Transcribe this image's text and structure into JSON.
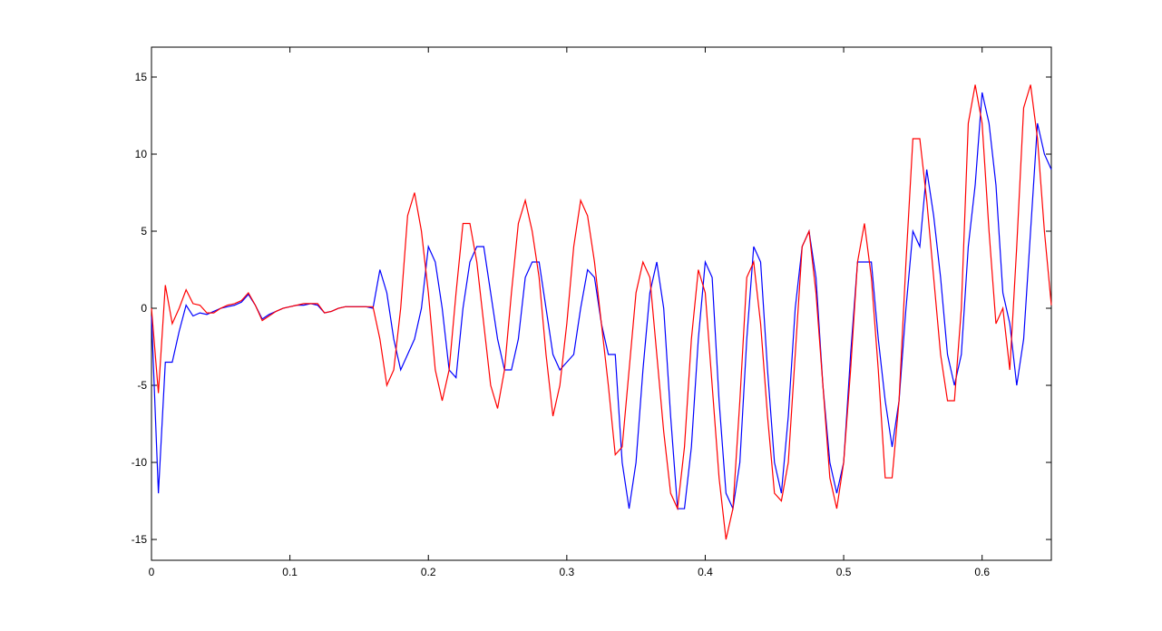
{
  "chart_data": {
    "type": "line",
    "x": [
      0,
      0.005,
      0.01,
      0.015,
      0.02,
      0.025,
      0.03,
      0.035,
      0.04,
      0.045,
      0.05,
      0.055,
      0.06,
      0.065,
      0.07,
      0.075,
      0.08,
      0.085,
      0.09,
      0.095,
      0.1,
      0.105,
      0.11,
      0.115,
      0.12,
      0.125,
      0.13,
      0.135,
      0.14,
      0.145,
      0.15,
      0.155,
      0.16,
      0.165,
      0.17,
      0.175,
      0.18,
      0.185,
      0.19,
      0.195,
      0.2,
      0.205,
      0.21,
      0.215,
      0.22,
      0.225,
      0.23,
      0.235,
      0.24,
      0.245,
      0.25,
      0.255,
      0.26,
      0.265,
      0.27,
      0.275,
      0.28,
      0.285,
      0.29,
      0.295,
      0.3,
      0.305,
      0.31,
      0.315,
      0.32,
      0.325,
      0.33,
      0.335,
      0.34,
      0.345,
      0.35,
      0.355,
      0.36,
      0.365,
      0.37,
      0.375,
      0.38,
      0.385,
      0.39,
      0.395,
      0.4,
      0.405,
      0.41,
      0.415,
      0.42,
      0.425,
      0.43,
      0.435,
      0.44,
      0.445,
      0.45,
      0.455,
      0.46,
      0.465,
      0.47,
      0.475,
      0.48,
      0.485,
      0.49,
      0.495,
      0.5,
      0.505,
      0.51,
      0.515,
      0.52,
      0.525,
      0.53,
      0.535,
      0.54,
      0.545,
      0.55,
      0.555,
      0.56,
      0.565,
      0.57,
      0.575,
      0.58,
      0.585,
      0.59,
      0.595,
      0.6,
      0.605,
      0.61,
      0.615,
      0.62,
      0.625,
      0.63,
      0.635,
      0.64,
      0.645,
      0.65
    ],
    "series": [
      {
        "color": "#0000ff",
        "values": [
          -0.5,
          -12,
          -3.5,
          -3.5,
          -1.5,
          0.2,
          -0.5,
          -0.3,
          -0.4,
          -0.2,
          0,
          0.1,
          0.2,
          0.4,
          0.9,
          0.2,
          -0.7,
          -0.4,
          -0.2,
          0,
          0.1,
          0.2,
          0.2,
          0.3,
          0.2,
          -0.3,
          -0.2,
          0,
          0.1,
          0.1,
          0.1,
          0.1,
          0,
          2.5,
          1,
          -2,
          -4,
          -3,
          -2,
          0,
          4,
          3,
          0,
          -4,
          -4.5,
          0,
          3,
          4,
          4,
          1,
          -2,
          -4,
          -4,
          -2,
          2,
          3,
          3,
          0,
          -3,
          -4,
          -3.5,
          -3,
          0,
          2.5,
          2,
          -1,
          -3,
          -3,
          -10,
          -13,
          -10,
          -4,
          1,
          3,
          0,
          -7,
          -13,
          -13,
          -9,
          -2,
          3,
          2,
          -6,
          -12,
          -13,
          -10,
          -2,
          4,
          3,
          -4,
          -10,
          -12,
          -7,
          0,
          4,
          5,
          2,
          -5,
          -10,
          -12,
          -10,
          -3,
          3,
          3,
          3,
          -2,
          -6,
          -9,
          -6,
          0,
          5,
          4,
          9,
          6,
          2,
          -3,
          -5,
          -3,
          4,
          8,
          14,
          12,
          8,
          1,
          -1,
          -5,
          -2,
          5,
          12,
          10,
          9
        ]
      },
      {
        "color": "#ff0000",
        "values": [
          0,
          -5.5,
          1.5,
          -1,
          0,
          1.2,
          0.3,
          0.2,
          -0.3,
          -0.3,
          0,
          0.2,
          0.3,
          0.5,
          1,
          0.2,
          -0.8,
          -0.5,
          -0.2,
          0,
          0.1,
          0.2,
          0.3,
          0.3,
          0.3,
          -0.3,
          -0.2,
          0,
          0.1,
          0.1,
          0.1,
          0.1,
          0.1,
          -2,
          -5,
          -4,
          0,
          6,
          7.5,
          5,
          1,
          -4,
          -6,
          -4,
          1,
          5.5,
          5.5,
          3,
          -1,
          -5,
          -6.5,
          -4,
          1,
          5.5,
          7,
          5,
          2,
          -3,
          -7,
          -5,
          -1,
          4,
          7,
          6,
          3,
          -1,
          -5,
          -9.5,
          -9,
          -4,
          1,
          3,
          2,
          -3,
          -8,
          -12,
          -13,
          -9,
          -2,
          2.5,
          1,
          -5,
          -11,
          -15,
          -13,
          -6,
          2,
          3,
          -1,
          -7,
          -12,
          -12.5,
          -10,
          -3,
          4,
          5,
          1,
          -5,
          -11,
          -13,
          -10,
          -4,
          3,
          5.5,
          2,
          -4,
          -11,
          -11,
          -6,
          3,
          11,
          11,
          7,
          2,
          -3,
          -6,
          -6,
          0,
          12,
          14.5,
          12,
          5,
          -1,
          0,
          -4,
          4,
          13,
          14.5,
          11,
          5,
          0.2
        ]
      }
    ],
    "xlim": [
      0,
      0.65
    ],
    "ylim": [
      -16.35,
      16.94
    ],
    "xticks": [
      0,
      0.1,
      0.2,
      0.3,
      0.4,
      0.5,
      0.6
    ],
    "yticks": [
      -15,
      -10,
      -5,
      0,
      5,
      10,
      15
    ]
  }
}
